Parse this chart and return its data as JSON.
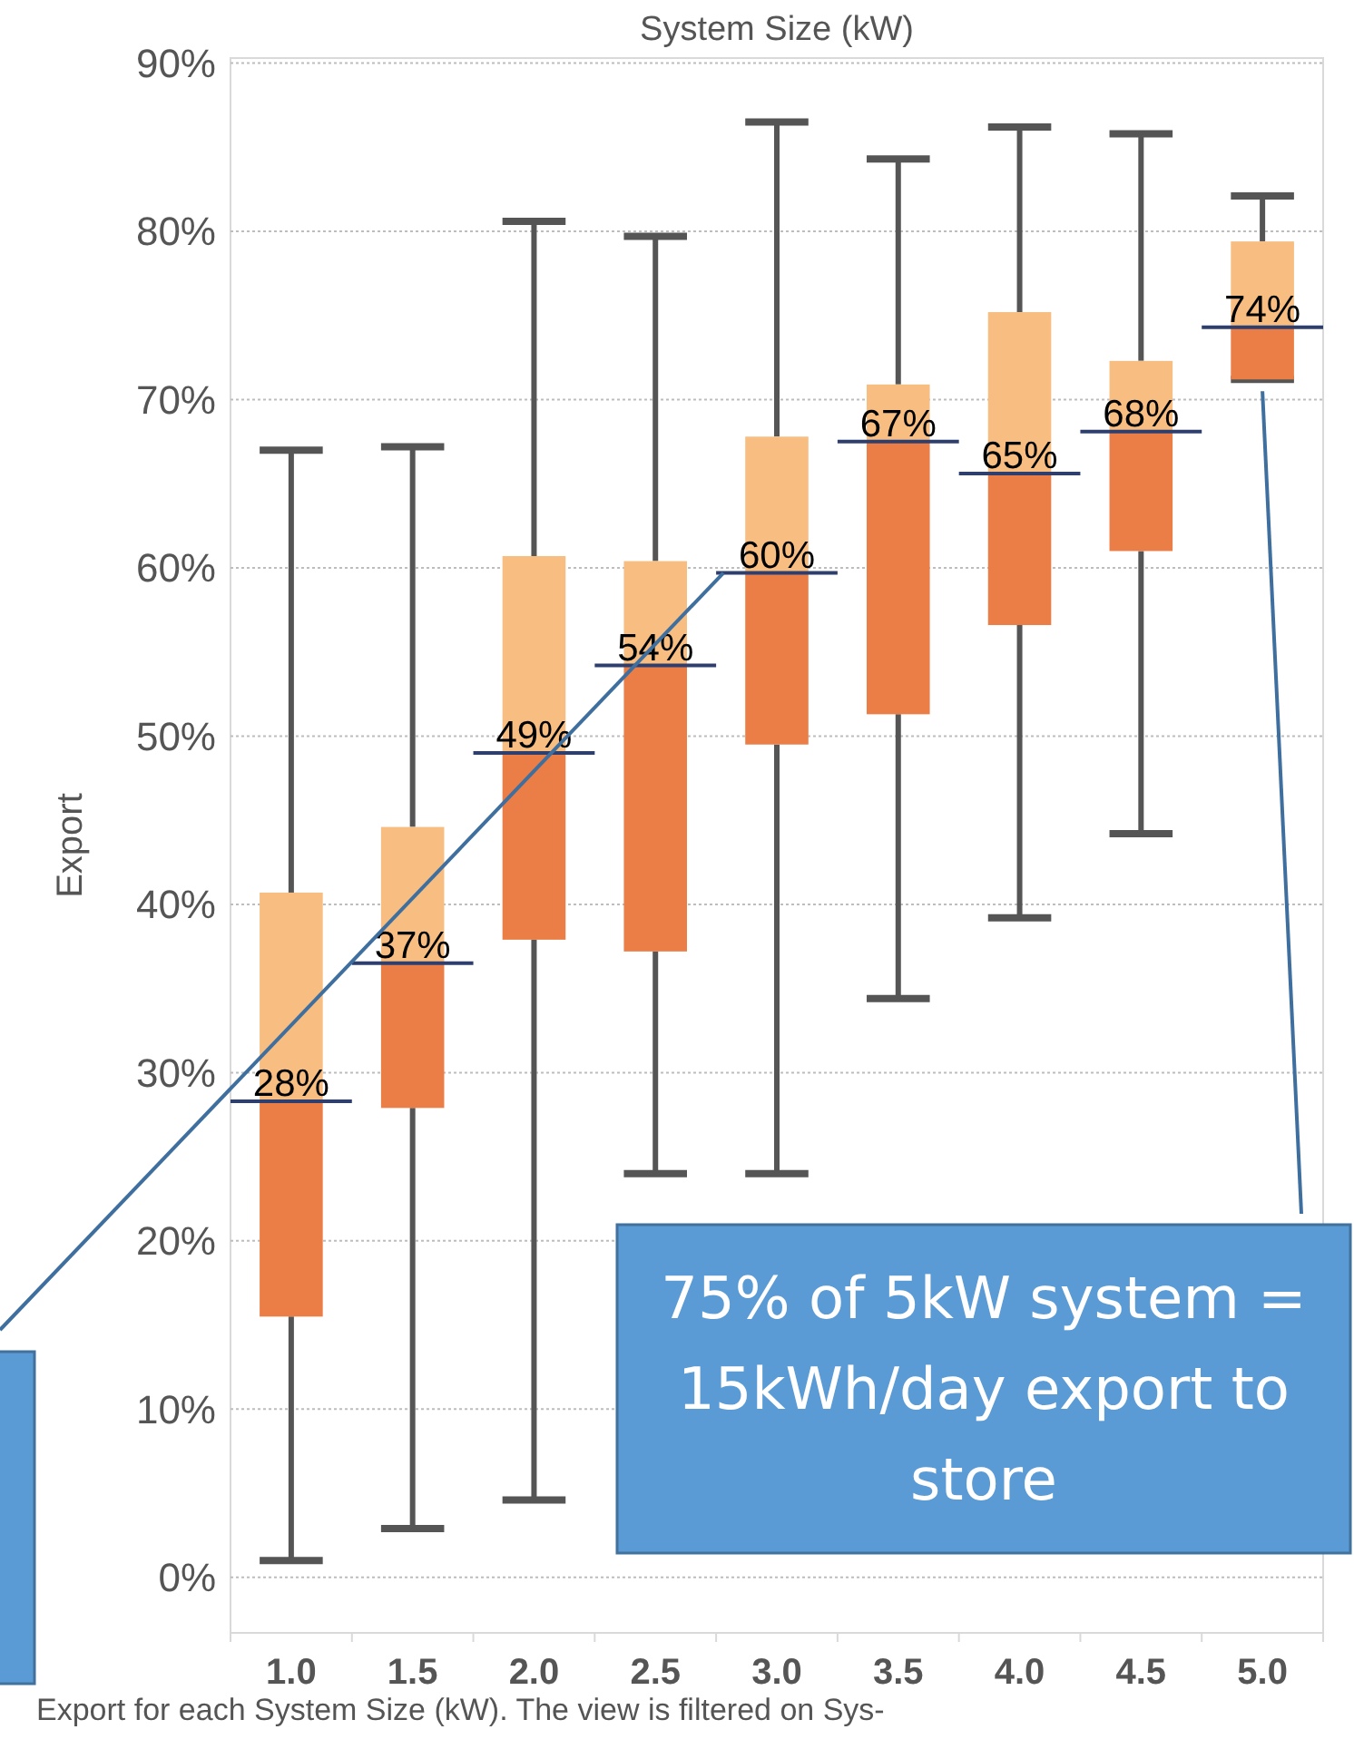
{
  "chart_data": {
    "type": "box",
    "title": "System Size (kW)",
    "ylabel": "Export",
    "categories": [
      "1.0",
      "1.5",
      "2.0",
      "2.5",
      "3.0",
      "3.5",
      "4.0",
      "4.5",
      "5.0"
    ],
    "boxes": [
      {
        "low": 1.0,
        "q1": 15.5,
        "median": 28.3,
        "q3": 40.7,
        "high": 67.0
      },
      {
        "low": 2.9,
        "q1": 27.9,
        "median": 36.5,
        "q3": 44.6,
        "high": 67.2
      },
      {
        "low": 4.6,
        "q1": 37.9,
        "median": 49.0,
        "q3": 60.7,
        "high": 80.6
      },
      {
        "low": 24.0,
        "q1": 37.2,
        "median": 54.2,
        "q3": 60.4,
        "high": 79.7
      },
      {
        "low": 24.0,
        "q1": 49.5,
        "median": 59.7,
        "q3": 67.8,
        "high": 86.5
      },
      {
        "low": 34.4,
        "q1": 51.3,
        "median": 67.5,
        "q3": 70.9,
        "high": 84.3
      },
      {
        "low": 39.2,
        "q1": 56.6,
        "median": 65.6,
        "q3": 75.2,
        "high": 86.2
      },
      {
        "low": 44.2,
        "q1": 61.0,
        "median": 68.1,
        "q3": 72.3,
        "high": 85.8
      },
      {
        "low": 71.2,
        "q1": 71.2,
        "median": 74.3,
        "q3": 79.4,
        "high": 82.1
      }
    ],
    "value_labels": [
      "28%",
      "37%",
      "49%",
      "54%",
      "60%",
      "67%",
      "65%",
      "68%",
      "74%"
    ],
    "color": "#eb7d46",
    "ylim": [
      -3.3,
      90.3
    ],
    "yticks": [
      {
        "value": 0,
        "label": "0%"
      },
      {
        "value": 10,
        "label": "10%"
      },
      {
        "value": 20,
        "label": "20%"
      },
      {
        "value": 30,
        "label": "30%"
      },
      {
        "value": 40,
        "label": "40%"
      },
      {
        "value": 50,
        "label": "50%"
      },
      {
        "value": 60,
        "label": "60%"
      },
      {
        "value": 70,
        "label": "70%"
      },
      {
        "value": 80,
        "label": "80%"
      },
      {
        "value": 90,
        "label": "90%"
      }
    ],
    "grid": "y",
    "annotations": [
      {
        "text": "75% of 5kW system = 15kWh/day export to store",
        "x": "5.0",
        "y": 70.5
      },
      "Export for each System Size (kW). The view is filtered on Sys-"
    ]
  }
}
